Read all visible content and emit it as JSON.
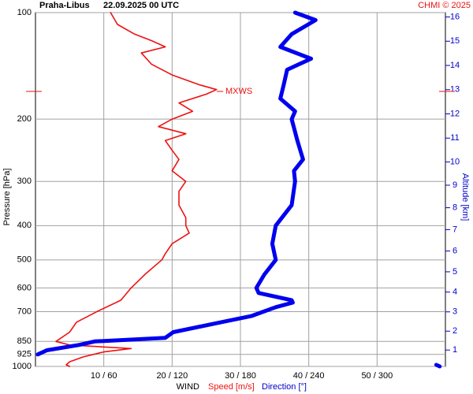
{
  "chart_data": {
    "type": "profile",
    "title": "Praha-Libus",
    "subtitle": "22.09.2025 00 UTC",
    "source": "CHMI © 2025",
    "y_label": "Pressure [hPa]",
    "y2_label": "Altitude [km]",
    "x_label": "WIND",
    "log_y": true,
    "ylim": [
      1000,
      100
    ],
    "yticks": [
      100,
      200,
      300,
      400,
      500,
      600,
      700,
      850,
      925,
      1000
    ],
    "xlim": [
      0,
      60
    ],
    "x2lim": [
      0,
      360
    ],
    "xticks": [
      {
        "value": 10,
        "label": "10 / 60"
      },
      {
        "value": 20,
        "label": "20 / 120"
      },
      {
        "value": 30,
        "label": "30 / 180"
      },
      {
        "value": 40,
        "label": "40 / 240"
      },
      {
        "value": 50,
        "label": "50 / 300"
      }
    ],
    "y2ticks": [
      1,
      2,
      3,
      4,
      5,
      6,
      7,
      8,
      9,
      10,
      11,
      12,
      13,
      14,
      15,
      16
    ],
    "grid": true,
    "annotation": {
      "text": "MXWS",
      "pressure": 167
    },
    "series": [
      {
        "name": "Speed [m/s]",
        "color": "#ee1111",
        "axis": "x",
        "width": 1.6,
        "values": [
          11,
          12,
          14.5,
          17,
          19,
          15.5,
          17,
          20,
          24,
          26.5,
          25,
          21,
          23,
          20,
          18,
          22,
          19,
          20,
          21,
          20,
          22,
          21,
          21,
          22,
          22,
          22.5,
          20,
          19,
          18.5,
          16,
          14,
          12.5,
          9,
          6,
          5,
          3,
          5,
          14,
          10,
          7,
          5,
          4.5,
          5
        ],
        "pressure": [
          100,
          108,
          115,
          120,
          125,
          130,
          140,
          150,
          160,
          165,
          170,
          180,
          190,
          200,
          210,
          220,
          230,
          245,
          260,
          280,
          300,
          320,
          350,
          380,
          400,
          420,
          450,
          480,
          500,
          550,
          600,
          650,
          700,
          750,
          800,
          850,
          870,
          890,
          910,
          940,
          970,
          990,
          1000
        ]
      },
      {
        "name": "Direction [°]",
        "color": "#0000ee",
        "axis": "x2",
        "width": 5,
        "values": [
          228,
          246,
          225,
          215,
          242,
          221,
          218,
          215,
          228,
          225,
          230,
          235,
          227,
          228,
          225,
          211,
          208,
          211,
          201,
          194,
          196,
          225,
          226,
          211,
          190,
          163,
          121,
          114,
          52,
          38,
          10,
          2,
          null,
          352,
          355
        ],
        "pressure": [
          100,
          105,
          115,
          125,
          135,
          145,
          160,
          175,
          190,
          200,
          230,
          260,
          280,
          300,
          350,
          400,
          450,
          500,
          550,
          600,
          620,
          650,
          660,
          680,
          720,
          750,
          800,
          830,
          850,
          870,
          900,
          925,
          935,
          990,
          1000
        ]
      }
    ]
  }
}
